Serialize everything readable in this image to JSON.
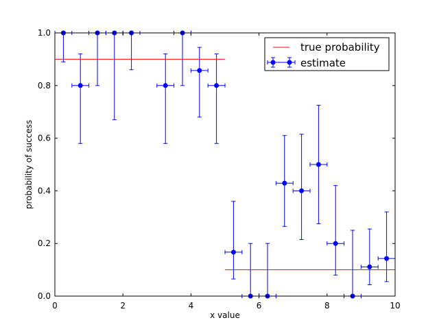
{
  "chart_data": {
    "type": "scatter",
    "title": "",
    "xlabel": "x value",
    "ylabel": "probability of success",
    "xlim": [
      0,
      10
    ],
    "ylim": [
      0,
      1
    ],
    "xticks": [
      "0",
      "2",
      "4",
      "6",
      "8",
      "10"
    ],
    "yticks": [
      "0.0",
      "0.2",
      "0.4",
      "0.6",
      "0.8",
      "1.0"
    ],
    "grid": false,
    "legend_position": "top-right",
    "series": [
      {
        "name": "true probability",
        "kind": "step-line",
        "color": "#ff0000",
        "segments": [
          {
            "x": [
              0,
              5
            ],
            "y": [
              0.9,
              0.9
            ]
          },
          {
            "x": [
              5,
              10
            ],
            "y": [
              0.1,
              0.1
            ]
          }
        ]
      },
      {
        "name": "estimate",
        "kind": "errorbar",
        "color": "#0000ff",
        "x": [
          0.25,
          0.75,
          1.25,
          1.75,
          2.25,
          3.25,
          3.75,
          4.25,
          4.75,
          5.25,
          5.75,
          6.25,
          6.75,
          7.25,
          7.75,
          8.25,
          8.75,
          9.25,
          9.75
        ],
        "y": [
          1.0,
          0.8,
          1.0,
          1.0,
          1.0,
          0.8,
          1.0,
          0.857,
          0.8,
          0.167,
          0.0,
          0.0,
          0.429,
          0.4,
          0.5,
          0.2,
          0.0,
          0.111,
          0.143
        ],
        "y_lower": [
          0.89,
          0.58,
          0.8,
          0.67,
          0.86,
          0.58,
          0.8,
          0.68,
          0.58,
          0.065,
          0.0,
          0.0,
          0.265,
          0.215,
          0.275,
          0.08,
          0.0,
          0.043,
          0.055
        ],
        "y_upper": [
          1.0,
          0.92,
          1.0,
          1.0,
          1.0,
          0.92,
          1.0,
          0.945,
          0.92,
          0.36,
          0.2,
          0.2,
          0.61,
          0.615,
          0.725,
          0.42,
          0.25,
          0.255,
          0.32
        ],
        "x_halfwidth": 0.25
      }
    ]
  }
}
